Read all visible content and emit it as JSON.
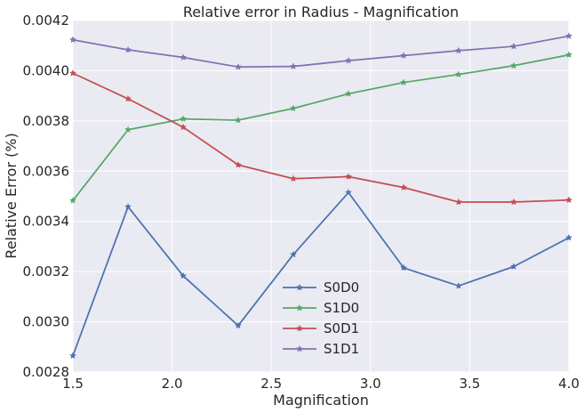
{
  "chart_data": {
    "type": "line",
    "title": "Relative error in Radius - Magnification",
    "xlabel": "Magnification",
    "ylabel": "Relative Error (%)",
    "xlim": [
      1.5,
      4.0
    ],
    "ylim": [
      0.0028,
      0.0042
    ],
    "xticks": [
      "1.5",
      "2.0",
      "2.5",
      "3.0",
      "3.5",
      "4.0"
    ],
    "yticks": [
      "0.0028",
      "0.0030",
      "0.0032",
      "0.0034",
      "0.0036",
      "0.0038",
      "0.0040",
      "0.0042"
    ],
    "grid": true,
    "legend_position": "lower-center",
    "x": [
      1.5,
      1.778,
      2.056,
      2.333,
      2.611,
      2.889,
      3.167,
      3.444,
      3.722,
      4.0
    ],
    "series": [
      {
        "name": "S0D0",
        "color": "#4c72b0",
        "values": [
          0.002865,
          0.003458,
          0.003183,
          0.002985,
          0.003268,
          0.003515,
          0.003215,
          0.003143,
          0.00322,
          0.003335
        ]
      },
      {
        "name": "S1D0",
        "color": "#55a868",
        "values": [
          0.003483,
          0.003765,
          0.003808,
          0.003803,
          0.00385,
          0.003908,
          0.003953,
          0.003985,
          0.00402,
          0.004063
        ]
      },
      {
        "name": "S0D1",
        "color": "#c44e52",
        "values": [
          0.00399,
          0.003888,
          0.003775,
          0.003625,
          0.00357,
          0.003578,
          0.003535,
          0.003477,
          0.003477,
          0.003485
        ]
      },
      {
        "name": "S1D1",
        "color": "#8172b2",
        "values": [
          0.004123,
          0.004083,
          0.004053,
          0.004015,
          0.004017,
          0.00404,
          0.00406,
          0.00408,
          0.004097,
          0.004138
        ]
      }
    ]
  }
}
